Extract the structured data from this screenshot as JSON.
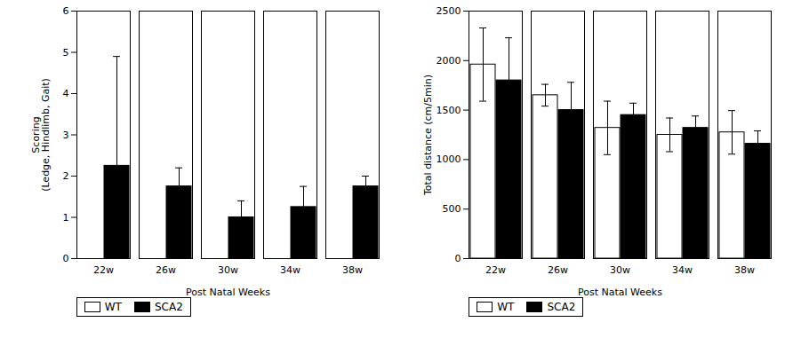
{
  "chart_data": [
    {
      "type": "bar",
      "xlabel": "Post Natal Weeks",
      "ylabel": "Scoring\n(Ledge, Hindlimb, Gait)",
      "categories": [
        "22w",
        "26w",
        "30w",
        "34w",
        "38w"
      ],
      "series": [
        {
          "name": "WT",
          "color": "white",
          "values": [
            0,
            0,
            0,
            0,
            0
          ],
          "errors": [
            0,
            0,
            0,
            0,
            0
          ]
        },
        {
          "name": "SCA2",
          "color": "black",
          "values": [
            2.25,
            1.75,
            1.0,
            1.25,
            1.75
          ],
          "errors": [
            2.65,
            0.45,
            0.4,
            0.5,
            0.25
          ]
        }
      ],
      "ylim": [
        0,
        6
      ],
      "yticks": [
        0,
        1,
        2,
        3,
        4,
        5,
        6
      ],
      "legend": "bottom"
    },
    {
      "type": "bar",
      "xlabel": "Post Natal Weeks",
      "ylabel": "Total distance (cm/5min)",
      "categories": [
        "22w",
        "26w",
        "30w",
        "34w",
        "38w"
      ],
      "series": [
        {
          "name": "WT",
          "color": "white",
          "values": [
            1960,
            1650,
            1320,
            1250,
            1275
          ],
          "errors": [
            370,
            110,
            270,
            170,
            220
          ]
        },
        {
          "name": "SCA2",
          "color": "black",
          "values": [
            1800,
            1500,
            1450,
            1320,
            1160
          ],
          "errors": [
            430,
            280,
            120,
            120,
            130
          ]
        }
      ],
      "ylim": [
        0,
        2500
      ],
      "yticks": [
        0,
        500,
        1000,
        1500,
        2000,
        2500
      ],
      "legend": "bottom"
    }
  ]
}
